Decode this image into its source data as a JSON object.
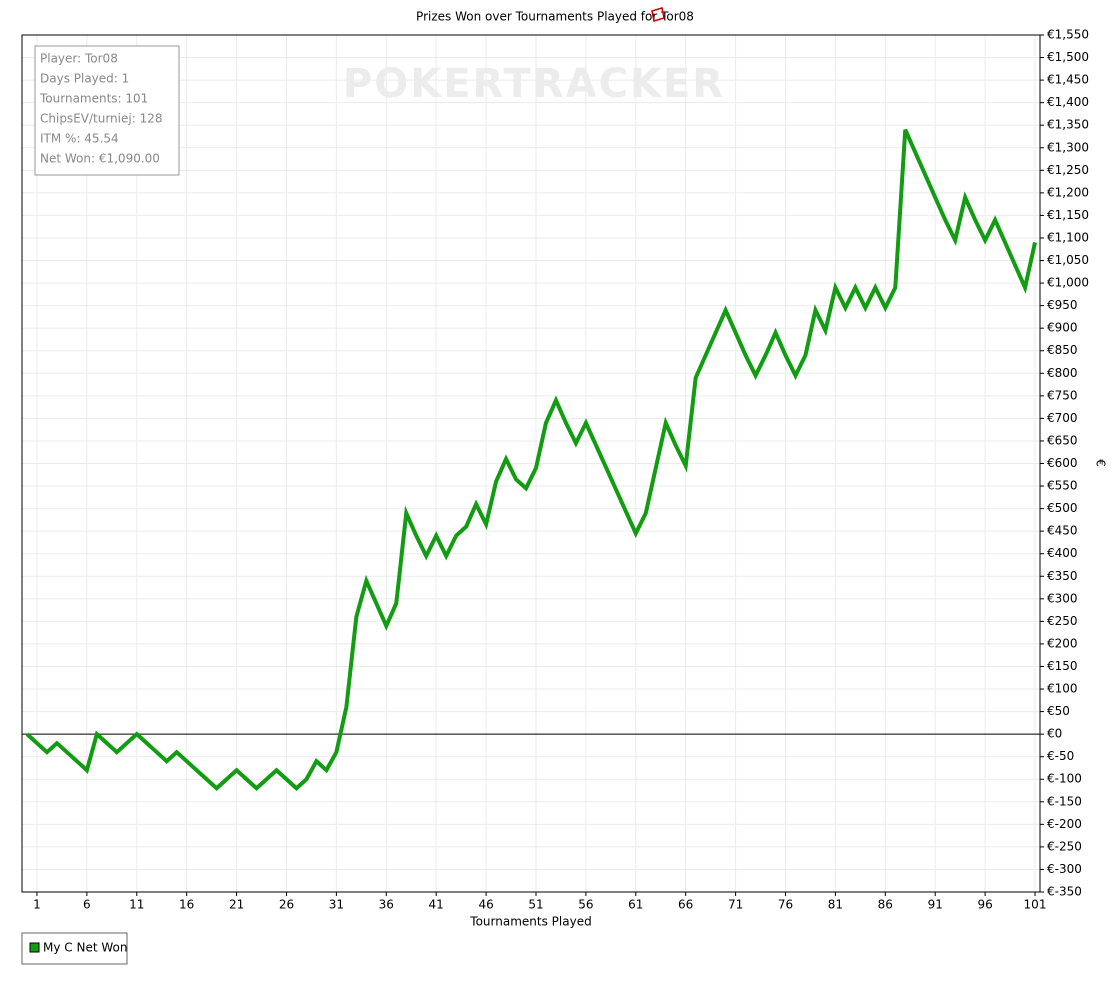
{
  "chart_data": {
    "type": "line",
    "title": "Prizes Won over Tournaments Played for Tor08",
    "xlabel": "Tournaments Played",
    "ylabel": "€",
    "watermark": "POKERTRACKER",
    "annotations": [
      "Player: Tor08",
      "Days Played: 1",
      "Tournaments: 101",
      "ChipsEV/turniej: 128",
      "ITM %: 45.54",
      "Net Won: €1,090.00"
    ],
    "legend": "bottom-left",
    "grid": true,
    "x": [
      0,
      1,
      2,
      3,
      4,
      5,
      6,
      7,
      8,
      9,
      10,
      11,
      12,
      13,
      14,
      15,
      16,
      17,
      18,
      19,
      20,
      21,
      22,
      23,
      24,
      25,
      26,
      27,
      28,
      29,
      30,
      31,
      32,
      33,
      34,
      35,
      36,
      37,
      38,
      39,
      40,
      41,
      42,
      43,
      44,
      45,
      46,
      47,
      48,
      49,
      50,
      51,
      52,
      53,
      54,
      55,
      56,
      57,
      58,
      59,
      60,
      61,
      62,
      63,
      64,
      65,
      66,
      67,
      68,
      69,
      70,
      71,
      72,
      73,
      74,
      75,
      76,
      77,
      78,
      79,
      80,
      81,
      82,
      83,
      84,
      85,
      86,
      87,
      88,
      89,
      90,
      91,
      92,
      93,
      94,
      95,
      96,
      97,
      98,
      99,
      100,
      101
    ],
    "series": [
      {
        "name": "My C Net Won",
        "color": "#129c12",
        "values": [
          0,
          -20,
          -40,
          -20,
          -40,
          -60,
          -80,
          0,
          -20,
          -40,
          -20,
          0,
          -20,
          -40,
          -60,
          -40,
          -60,
          -80,
          -100,
          -120,
          -100,
          -80,
          -100,
          -120,
          -100,
          -80,
          -100,
          -120,
          -100,
          -60,
          -80,
          -40,
          60,
          260,
          340,
          290,
          240,
          290,
          490,
          440,
          395,
          440,
          395,
          440,
          460,
          510,
          465,
          560,
          610,
          565,
          545,
          590,
          690,
          740,
          690,
          645,
          690,
          641,
          592,
          543,
          494,
          445,
          490,
          590,
          690,
          640,
          595,
          790,
          840,
          890,
          940,
          890,
          840,
          795,
          840,
          890,
          840,
          795,
          840,
          940,
          895,
          990,
          945,
          990,
          945,
          990,
          945,
          990,
          1340,
          1290,
          1240,
          1190,
          1140,
          1095,
          1190,
          1140,
          1095,
          1140,
          1090,
          1040,
          990,
          1090
        ]
      }
    ],
    "xlim": [
      -0.5,
      101.5
    ],
    "xticks": [
      1,
      6,
      11,
      16,
      21,
      26,
      31,
      36,
      41,
      46,
      51,
      56,
      61,
      66,
      71,
      76,
      81,
      86,
      91,
      96,
      101
    ],
    "ylim": [
      -350,
      1550
    ],
    "yticks": [
      {
        "value": -350,
        "label": "€-350"
      },
      {
        "value": -300,
        "label": "€-300"
      },
      {
        "value": -250,
        "label": "€-250"
      },
      {
        "value": -200,
        "label": "€-200"
      },
      {
        "value": -150,
        "label": "€-150"
      },
      {
        "value": -100,
        "label": "€-100"
      },
      {
        "value": -50,
        "label": "€-50"
      },
      {
        "value": 0,
        "label": "€0"
      },
      {
        "value": 50,
        "label": "€50"
      },
      {
        "value": 100,
        "label": "€100"
      },
      {
        "value": 150,
        "label": "€150"
      },
      {
        "value": 200,
        "label": "€200"
      },
      {
        "value": 250,
        "label": "€250"
      },
      {
        "value": 300,
        "label": "€300"
      },
      {
        "value": 350,
        "label": "€350"
      },
      {
        "value": 400,
        "label": "€400"
      },
      {
        "value": 450,
        "label": "€450"
      },
      {
        "value": 500,
        "label": "€500"
      },
      {
        "value": 550,
        "label": "€550"
      },
      {
        "value": 600,
        "label": "€600"
      },
      {
        "value": 650,
        "label": "€650"
      },
      {
        "value": 700,
        "label": "€700"
      },
      {
        "value": 750,
        "label": "€750"
      },
      {
        "value": 800,
        "label": "€800"
      },
      {
        "value": 850,
        "label": "€850"
      },
      {
        "value": 900,
        "label": "€900"
      },
      {
        "value": 950,
        "label": "€950"
      },
      {
        "value": 1000,
        "label": "€1,000"
      },
      {
        "value": 1050,
        "label": "€1,050"
      },
      {
        "value": 1100,
        "label": "€1,100"
      },
      {
        "value": 1150,
        "label": "€1,150"
      },
      {
        "value": 1200,
        "label": "€1,200"
      },
      {
        "value": 1250,
        "label": "€1,250"
      },
      {
        "value": 1300,
        "label": "€1,300"
      },
      {
        "value": 1350,
        "label": "€1,350"
      },
      {
        "value": 1400,
        "label": "€1,400"
      },
      {
        "value": 1450,
        "label": "€1,450"
      },
      {
        "value": 1500,
        "label": "€1,500"
      },
      {
        "value": 1550,
        "label": "€1,550"
      }
    ]
  }
}
